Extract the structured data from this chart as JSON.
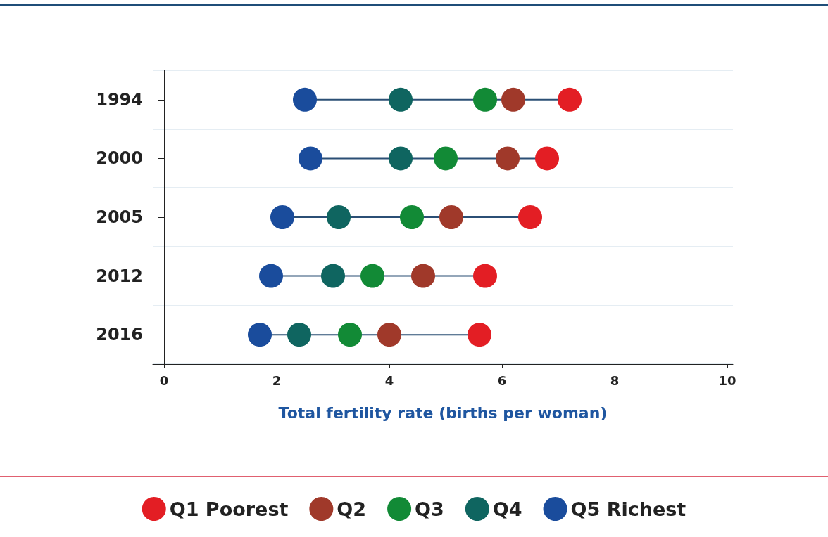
{
  "chart_data": {
    "type": "scatter",
    "orientation": "horizontal",
    "xlabel": "Total fertility rate (births per woman)",
    "categories": [
      "1994",
      "2000",
      "2005",
      "2012",
      "2016"
    ],
    "series": [
      {
        "name": "Q1 Poorest",
        "color": "#e31e24",
        "values": [
          7.2,
          6.8,
          6.5,
          5.7,
          5.6
        ]
      },
      {
        "name": "Q2",
        "color": "#a0392a",
        "values": [
          6.2,
          6.1,
          5.1,
          4.6,
          4.0
        ]
      },
      {
        "name": "Q3",
        "color": "#128a36",
        "values": [
          5.7,
          5.0,
          4.4,
          3.7,
          3.3
        ]
      },
      {
        "name": "Q4",
        "color": "#0f6560",
        "values": [
          4.2,
          4.2,
          3.1,
          3.0,
          2.4
        ]
      },
      {
        "name": "Q5 Richest",
        "color": "#1a4c9c",
        "values": [
          2.5,
          2.6,
          2.1,
          1.9,
          1.7
        ]
      }
    ],
    "xlim": [
      -0.2,
      10.1
    ],
    "xticks": [
      0,
      2,
      4,
      6,
      8,
      10
    ],
    "grid": "y",
    "legend": "bottom",
    "marker": "circle"
  }
}
